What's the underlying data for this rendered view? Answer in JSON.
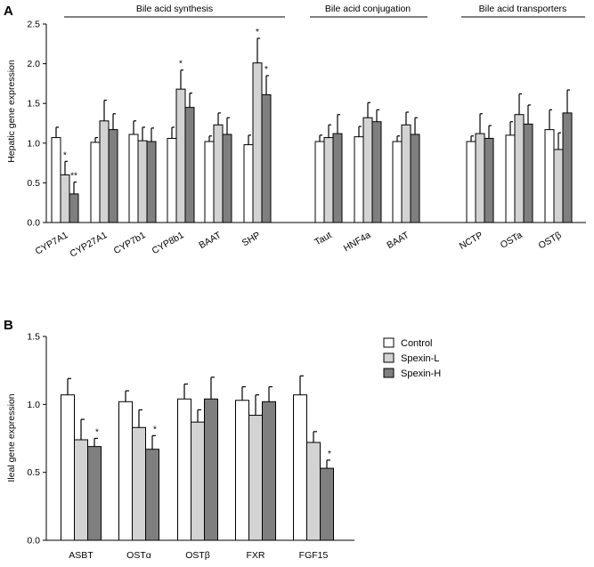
{
  "colors": {
    "control": "#ffffff",
    "spexin_l": "#d3d3d3",
    "spexin_h": "#7f7f7f",
    "stroke": "#000000"
  },
  "chart_data": [
    {
      "panel": "A",
      "type": "bar",
      "ylabel": "Hepatic gene expression",
      "ylim": [
        0,
        2.5
      ],
      "yticks": [
        0.0,
        0.5,
        1.0,
        1.5,
        2.0,
        2.5
      ],
      "ytick_labels": [
        "0.0",
        "0.5",
        "1.0",
        "1.5",
        "2.0",
        "2.5"
      ],
      "series_names": [
        "Control",
        "Spexin-L",
        "Spexin-H"
      ],
      "group_labels": [
        "Bile acid synthesis",
        "Bile acid conjugation",
        "Bile acid transporters"
      ],
      "categories": [
        {
          "label": "CYP7A1",
          "values": [
            1.07,
            0.6,
            0.36
          ],
          "errors": [
            0.13,
            0.17,
            0.15
          ],
          "sig": [
            "",
            "*",
            "**"
          ]
        },
        {
          "label": "CYP27A1",
          "values": [
            1.01,
            1.28,
            1.17
          ],
          "errors": [
            0.06,
            0.26,
            0.2
          ],
          "sig": [
            "",
            "",
            ""
          ]
        },
        {
          "label": "CYP7b1",
          "values": [
            1.11,
            1.03,
            1.02
          ],
          "errors": [
            0.17,
            0.17,
            0.17
          ],
          "sig": [
            "",
            "",
            ""
          ]
        },
        {
          "label": "CYP8b1",
          "values": [
            1.06,
            1.68,
            1.45
          ],
          "errors": [
            0.14,
            0.24,
            0.18
          ],
          "sig": [
            "",
            "*",
            ""
          ]
        },
        {
          "label": "BAAT",
          "values": [
            1.02,
            1.23,
            1.11
          ],
          "errors": [
            0.07,
            0.15,
            0.21
          ],
          "sig": [
            "",
            "",
            ""
          ]
        },
        {
          "label": "SHP",
          "values": [
            0.98,
            2.01,
            1.61
          ],
          "errors": [
            0.12,
            0.31,
            0.24
          ],
          "sig": [
            "",
            "*",
            "*"
          ]
        },
        {
          "label": "Taut",
          "values": [
            1.02,
            1.07,
            1.12
          ],
          "errors": [
            0.08,
            0.16,
            0.24
          ],
          "sig": [
            "",
            "",
            ""
          ]
        },
        {
          "label": "HNF4a",
          "values": [
            1.08,
            1.32,
            1.27
          ],
          "errors": [
            0.13,
            0.19,
            0.15
          ],
          "sig": [
            "",
            "",
            ""
          ]
        },
        {
          "label": "BAAT",
          "values": [
            1.02,
            1.23,
            1.11
          ],
          "errors": [
            0.07,
            0.16,
            0.21
          ],
          "sig": [
            "",
            "",
            ""
          ]
        },
        {
          "label": "NCTP",
          "values": [
            1.02,
            1.12,
            1.06
          ],
          "errors": [
            0.07,
            0.25,
            0.16
          ],
          "sig": [
            "",
            "",
            ""
          ]
        },
        {
          "label": "OSTa",
          "values": [
            1.1,
            1.36,
            1.24
          ],
          "errors": [
            0.17,
            0.26,
            0.24
          ],
          "sig": [
            "",
            "",
            ""
          ]
        },
        {
          "label": "OSTβ",
          "values": [
            1.17,
            0.92,
            1.38
          ],
          "errors": [
            0.25,
            0.21,
            0.29
          ],
          "sig": [
            "",
            "",
            ""
          ]
        }
      ]
    },
    {
      "panel": "B",
      "type": "bar",
      "ylabel": "Ileal gene expression",
      "ylim": [
        0,
        1.5
      ],
      "yticks": [
        0.0,
        0.5,
        1.0,
        1.5
      ],
      "ytick_labels": [
        "0.0",
        "0.5",
        "1.0",
        "1.5"
      ],
      "series_names": [
        "Control",
        "Spexin-L",
        "Spexin-H"
      ],
      "legend": [
        "Control",
        "Spexin-L",
        "Spexin-H"
      ],
      "categories": [
        {
          "label": "ASBT",
          "values": [
            1.07,
            0.74,
            0.69
          ],
          "errors": [
            0.12,
            0.15,
            0.06
          ],
          "sig": [
            "",
            "",
            "*"
          ]
        },
        {
          "label": "OSTα",
          "values": [
            1.02,
            0.83,
            0.67
          ],
          "errors": [
            0.08,
            0.13,
            0.1
          ],
          "sig": [
            "",
            "",
            "*"
          ]
        },
        {
          "label": "OSTβ",
          "values": [
            1.04,
            0.87,
            1.04
          ],
          "errors": [
            0.11,
            0.09,
            0.16
          ],
          "sig": [
            "",
            "",
            ""
          ]
        },
        {
          "label": "FXR",
          "values": [
            1.03,
            0.92,
            1.02
          ],
          "errors": [
            0.1,
            0.15,
            0.11
          ],
          "sig": [
            "",
            "",
            ""
          ]
        },
        {
          "label": "FGF15",
          "values": [
            1.07,
            0.72,
            0.53
          ],
          "errors": [
            0.14,
            0.08,
            0.06
          ],
          "sig": [
            "",
            "",
            "*"
          ]
        }
      ]
    }
  ]
}
